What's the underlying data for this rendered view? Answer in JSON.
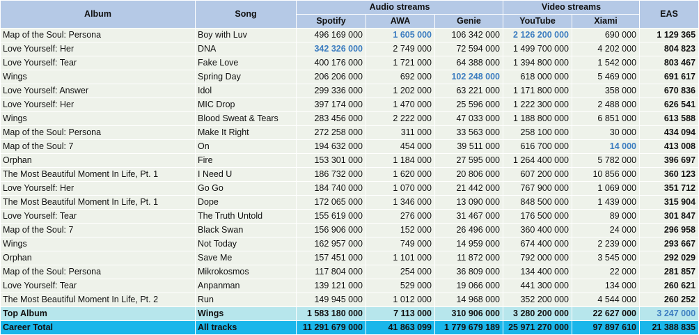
{
  "headers": {
    "album": "Album",
    "song": "Song",
    "audio_streams": "Audio streams",
    "video_streams": "Video streams",
    "eas": "EAS",
    "spotify": "Spotify",
    "awa": "AWA",
    "genie": "Genie",
    "youtube": "YouTube",
    "xiami": "Xiami"
  },
  "rows": [
    {
      "album": "Map of the Soul: Persona",
      "song": "Boy with Luv",
      "spotify": "496 169 000",
      "awa": "1 605 000",
      "genie": "106 342 000",
      "youtube": "2 126 200 000",
      "xiami": "690 000",
      "eas": "1 129 365",
      "hl": [
        "awa",
        "youtube"
      ]
    },
    {
      "album": "Love Yourself: Her",
      "song": "DNA",
      "spotify": "342 326 000",
      "awa": "2 749 000",
      "genie": "72 594 000",
      "youtube": "1 499 700 000",
      "xiami": "4 202 000",
      "eas": "804 823",
      "hl": [
        "spotify"
      ]
    },
    {
      "album": "Love Yourself: Tear",
      "song": "Fake Love",
      "spotify": "400 176 000",
      "awa": "1 721 000",
      "genie": "64 388 000",
      "youtube": "1 394 800 000",
      "xiami": "1 542 000",
      "eas": "803 467",
      "hl": []
    },
    {
      "album": "Wings",
      "song": "Spring Day",
      "spotify": "206 206 000",
      "awa": "692 000",
      "genie": "102 248 000",
      "youtube": "618 000 000",
      "xiami": "5 469 000",
      "eas": "691 617",
      "hl": [
        "genie"
      ]
    },
    {
      "album": "Love Yourself: Answer",
      "song": "Idol",
      "spotify": "299 336 000",
      "awa": "1 202 000",
      "genie": "63 221 000",
      "youtube": "1 171 800 000",
      "xiami": "358 000",
      "eas": "670 836",
      "hl": []
    },
    {
      "album": "Love Yourself: Her",
      "song": "MIC Drop",
      "spotify": "397 174 000",
      "awa": "1 470 000",
      "genie": "25 596 000",
      "youtube": "1 222 300 000",
      "xiami": "2 488 000",
      "eas": "626 541",
      "hl": []
    },
    {
      "album": "Wings",
      "song": "Blood Sweat & Tears",
      "spotify": "283 456 000",
      "awa": "2 222 000",
      "genie": "47 033 000",
      "youtube": "1 188 800 000",
      "xiami": "6 851 000",
      "eas": "613 588",
      "hl": []
    },
    {
      "album": "Map of the Soul: Persona",
      "song": "Make It Right",
      "spotify": "272 258 000",
      "awa": "311 000",
      "genie": "33 563 000",
      "youtube": "258 100 000",
      "xiami": "30 000",
      "eas": "434 094",
      "hl": []
    },
    {
      "album": "Map of the Soul: 7",
      "song": "On",
      "spotify": "194 632 000",
      "awa": "454 000",
      "genie": "39 511 000",
      "youtube": "616 700 000",
      "xiami": "14 000",
      "eas": "413 008",
      "hl": [
        "xiami"
      ]
    },
    {
      "album": "Orphan",
      "song": "Fire",
      "spotify": "153 301 000",
      "awa": "1 184 000",
      "genie": "27 595 000",
      "youtube": "1 264 400 000",
      "xiami": "5 782 000",
      "eas": "396 697",
      "hl": []
    },
    {
      "album": "The Most Beautiful Moment In Life, Pt. 1",
      "song": "I Need U",
      "spotify": "186 732 000",
      "awa": "1 620 000",
      "genie": "20 806 000",
      "youtube": "607 200 000",
      "xiami": "10 856 000",
      "eas": "360 123",
      "hl": []
    },
    {
      "album": "Love Yourself: Her",
      "song": "Go Go",
      "spotify": "184 740 000",
      "awa": "1 070 000",
      "genie": "21 442 000",
      "youtube": "767 900 000",
      "xiami": "1 069 000",
      "eas": "351 712",
      "hl": []
    },
    {
      "album": "The Most Beautiful Moment In Life, Pt. 1",
      "song": "Dope",
      "spotify": "172 065 000",
      "awa": "1 346 000",
      "genie": "13 090 000",
      "youtube": "848 500 000",
      "xiami": "1 439 000",
      "eas": "315 904",
      "hl": []
    },
    {
      "album": "Love Yourself: Tear",
      "song": "The Truth Untold",
      "spotify": "155 619 000",
      "awa": "276 000",
      "genie": "31 467 000",
      "youtube": "176 500 000",
      "xiami": "89 000",
      "eas": "301 847",
      "hl": []
    },
    {
      "album": "Map of the Soul: 7",
      "song": "Black Swan",
      "spotify": "156 906 000",
      "awa": "152 000",
      "genie": "26 496 000",
      "youtube": "360 400 000",
      "xiami": "24 000",
      "eas": "296 958",
      "hl": []
    },
    {
      "album": "Wings",
      "song": "Not Today",
      "spotify": "162 957 000",
      "awa": "749 000",
      "genie": "14 959 000",
      "youtube": "674 400 000",
      "xiami": "2 239 000",
      "eas": "293 667",
      "hl": []
    },
    {
      "album": "Orphan",
      "song": "Save Me",
      "spotify": "157 451 000",
      "awa": "1 101 000",
      "genie": "11 872 000",
      "youtube": "792 000 000",
      "xiami": "3 545 000",
      "eas": "292 029",
      "hl": []
    },
    {
      "album": "Map of the Soul: Persona",
      "song": "Mikrokosmos",
      "spotify": "117 804 000",
      "awa": "254 000",
      "genie": "36 809 000",
      "youtube": "134 400 000",
      "xiami": "22 000",
      "eas": "281 857",
      "hl": []
    },
    {
      "album": "Love Yourself: Tear",
      "song": "Anpanman",
      "spotify": "139 121 000",
      "awa": "529 000",
      "genie": "19 066 000",
      "youtube": "441 300 000",
      "xiami": "134 000",
      "eas": "260 621",
      "hl": []
    },
    {
      "album": "The Most Beautiful Moment In Life, Pt. 2",
      "song": "Run",
      "spotify": "149 945 000",
      "awa": "1 012 000",
      "genie": "14 968 000",
      "youtube": "352 200 000",
      "xiami": "4 544 000",
      "eas": "260 252",
      "hl": []
    }
  ],
  "top_album": {
    "label": "Top Album",
    "song": "Wings",
    "spotify": "1 583 180 000",
    "awa": "7 113 000",
    "genie": "310 906 000",
    "youtube": "3 280 200 000",
    "xiami": "22 627 000",
    "eas": "3 247 000"
  },
  "career_total": {
    "label": "Career Total",
    "song": "All tracks",
    "spotify": "11 291 679 000",
    "awa": "41 863 099",
    "genie": "1 779 679 189",
    "youtube": "25 971 270 000",
    "xiami": "97 897 610",
    "eas": "21 388 835"
  },
  "colors": {
    "header_bg": "#b5c9e6",
    "row_bg": "#eef2ea",
    "top_album_bg": "#b7e6ec",
    "career_total_bg": "#1ab6ea",
    "highlight_text": "#3c7dc0"
  }
}
